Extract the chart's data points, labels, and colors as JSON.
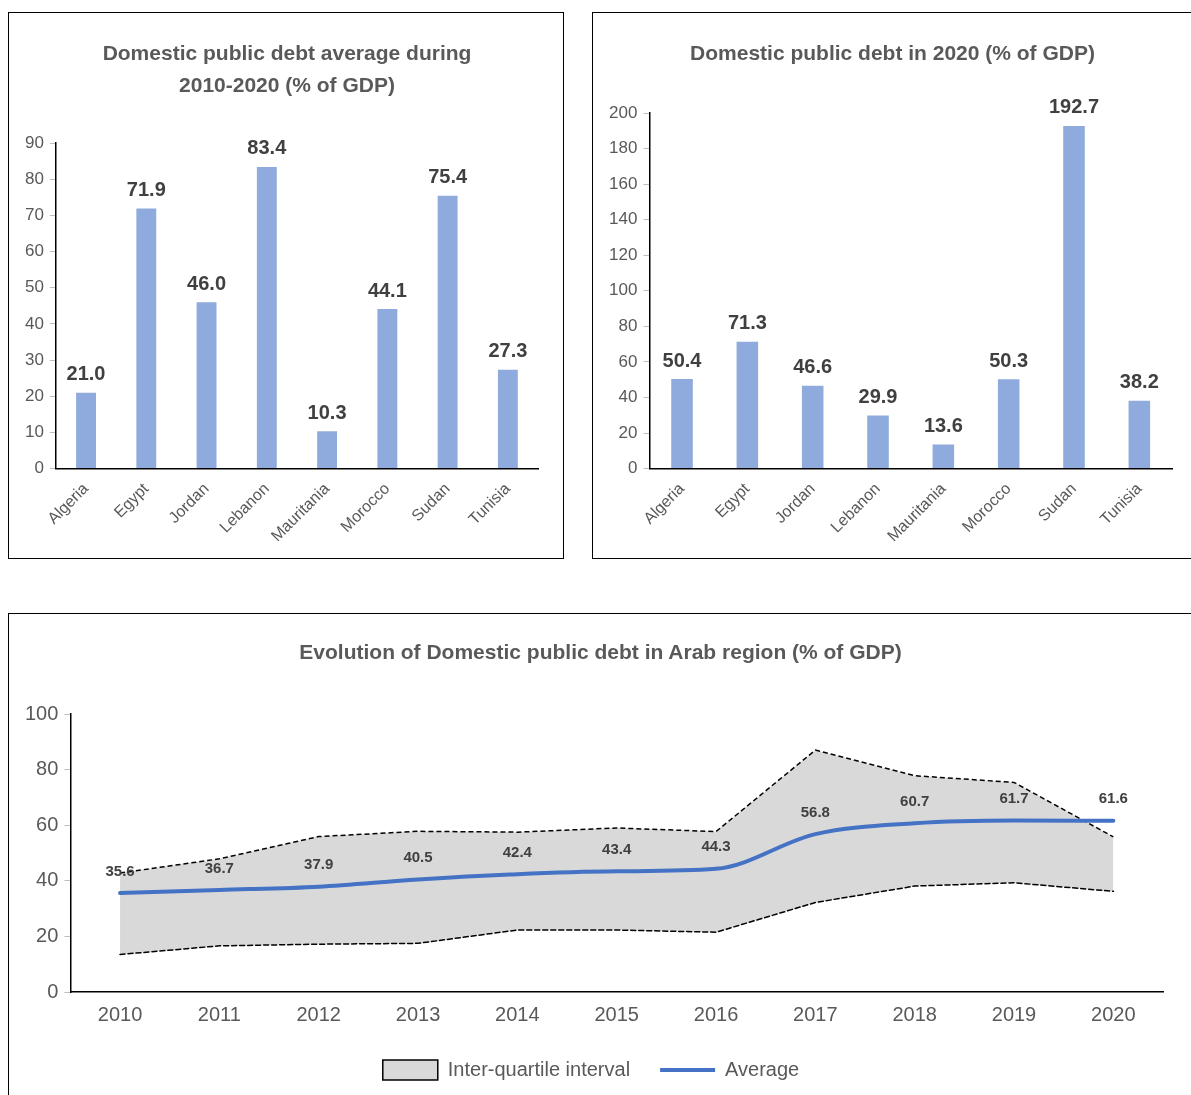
{
  "chart_data": [
    {
      "type": "bar",
      "title": "Domestic public debt average during 2010-2020 (% of GDP)",
      "categories": [
        "Algeria",
        "Egypt",
        "Jordan",
        "Lebanon",
        "Mauritania",
        "Morocco",
        "Sudan",
        "Tunisia"
      ],
      "values": [
        21.0,
        71.9,
        46.0,
        83.4,
        10.3,
        44.1,
        75.4,
        27.3
      ],
      "value_labels": [
        "21.0",
        "71.9",
        "46.0",
        "83.4",
        "10.3",
        "44.1",
        "75.4",
        "27.3"
      ],
      "color": "#8faadc",
      "ylim": [
        0,
        90
      ],
      "yticks": [
        0,
        10,
        20,
        30,
        40,
        50,
        60,
        70,
        80,
        90
      ],
      "grid": false,
      "legend": false
    },
    {
      "type": "bar",
      "title": "Domestic public debt in 2020 (% of GDP)",
      "categories": [
        "Algeria",
        "Egypt",
        "Jordan",
        "Lebanon",
        "Mauritania",
        "Morocco",
        "Sudan",
        "Tunisia"
      ],
      "values": [
        50.4,
        71.3,
        46.6,
        29.9,
        13.6,
        50.3,
        192.7,
        38.2
      ],
      "data_labels": true,
      "color": "#8faadc",
      "ylim": [
        0,
        200
      ],
      "yticks": [
        0,
        20,
        40,
        60,
        80,
        100,
        120,
        140,
        160,
        180,
        200
      ],
      "grid": false,
      "legend": false
    },
    {
      "type": "line",
      "title": "Evolution of Domestic public debt in Arab region (% of GDP)",
      "categories": [
        "2010",
        "2011",
        "2012",
        "2013",
        "2014",
        "2015",
        "2016",
        "2017",
        "2018",
        "2019",
        "2020"
      ],
      "series": [
        {
          "name": "Inter-quartile interval",
          "type": "area",
          "color": "#d9d9d9",
          "line_style": "dashed",
          "values": [
            42.8,
            47.9,
            55.9,
            57.8,
            57.5,
            59.0,
            57.7,
            87.0,
            77.8,
            75.4,
            55.8
          ]
        },
        {
          "type": "line",
          "color": "#000000",
          "line_style": "dashed",
          "values": [
            13.5,
            16.6,
            17.2,
            17.5,
            22.3,
            22.3,
            21.5,
            32.2,
            38.1,
            39.3,
            36.2
          ]
        },
        {
          "name": "Average",
          "type": "line",
          "color": "#4472c4",
          "line_style": "solid",
          "values": [
            35.6,
            36.7,
            37.9,
            40.5,
            42.4,
            43.4,
            44.3,
            56.8,
            60.7,
            61.7,
            61.6
          ],
          "value_labels": [
            "35.6",
            "36.7",
            "37.9",
            "40.5",
            "42.4",
            "43.4",
            "44.3",
            "56.8",
            "60.7",
            "61.7",
            "61.6"
          ]
        }
      ],
      "ylim": [
        0,
        100
      ],
      "yticks": [
        0,
        20,
        40,
        60,
        80,
        100
      ],
      "grid": false,
      "legend": "bottom",
      "marker": "none"
    }
  ]
}
